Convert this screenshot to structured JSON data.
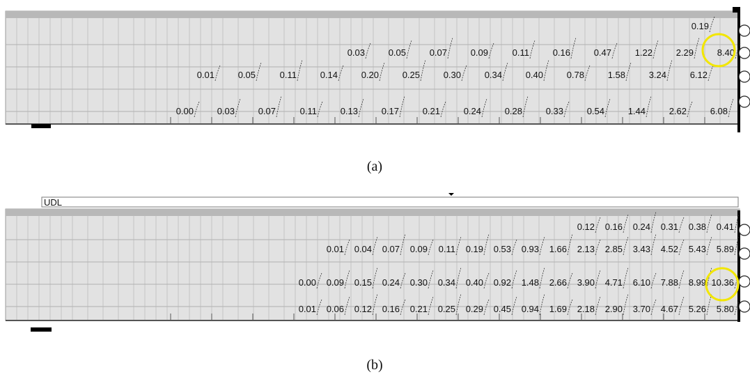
{
  "panels": [
    {
      "caption": "(a)",
      "load_label": "",
      "rows": [
        {
          "values": [
            [
              "0.19",
              13
            ]
          ]
        },
        {
          "values": [
            [
              "0.03",
              0
            ],
            [
              "0.05",
              1
            ],
            [
              "0.07",
              2
            ],
            [
              "0.09",
              3
            ],
            [
              "0.11",
              4
            ],
            [
              "0.16",
              5
            ],
            [
              "0.47",
              6
            ],
            [
              "1.22",
              7
            ],
            [
              "2.29",
              8
            ],
            [
              "8.40",
              9
            ]
          ]
        },
        {
          "values": [
            [
              "0.01",
              0
            ],
            [
              "0.05",
              1
            ],
            [
              "0.11",
              2
            ],
            [
              "0.14",
              3
            ],
            [
              "0.20",
              4
            ],
            [
              "0.25",
              5
            ],
            [
              "0.30",
              6
            ],
            [
              "0.34",
              7
            ],
            [
              "0.40",
              8
            ],
            [
              "0.78",
              9
            ],
            [
              "1.58",
              10
            ],
            [
              "3.24",
              11
            ],
            [
              "6.12",
              12
            ]
          ]
        },
        {
          "values": [
            [
              "0.00",
              0
            ],
            [
              "0.03",
              1
            ],
            [
              "0.07",
              2
            ],
            [
              "0.11",
              3
            ],
            [
              "0.13",
              4
            ],
            [
              "0.17",
              5
            ],
            [
              "0.21",
              6
            ],
            [
              "0.24",
              7
            ],
            [
              "0.28",
              8
            ],
            [
              "0.33",
              9
            ],
            [
              "0.54",
              10
            ],
            [
              "1.44",
              11
            ],
            [
              "2.62",
              12
            ],
            [
              "6.08",
              13
            ]
          ]
        }
      ],
      "highlighted": "8.40",
      "highlight_color": "#f2e600"
    },
    {
      "caption": "(b)",
      "load_label": "UDL",
      "rows": [
        {
          "values": [
            [
              "0.12",
              0
            ],
            [
              "0.16",
              1
            ],
            [
              "0.24",
              2
            ],
            [
              "0.31",
              3
            ],
            [
              "0.38",
              4
            ],
            [
              "0.41",
              5
            ]
          ]
        },
        {
          "values": [
            [
              "0.01",
              0
            ],
            [
              "0.04",
              1
            ],
            [
              "0.07",
              2
            ],
            [
              "0.09",
              3
            ],
            [
              "0.11",
              4
            ],
            [
              "0.19",
              5
            ],
            [
              "0.53",
              6
            ],
            [
              "0.93",
              7
            ],
            [
              "1.66",
              8
            ],
            [
              "2.13",
              9
            ],
            [
              "2.85",
              10
            ],
            [
              "3.43",
              11
            ],
            [
              "4.52",
              12
            ],
            [
              "5.43",
              13
            ],
            [
              "5.89",
              14
            ]
          ]
        },
        {
          "values": [
            [
              "0.00",
              0
            ],
            [
              "0.09",
              1
            ],
            [
              "0.15",
              2
            ],
            [
              "0.24",
              3
            ],
            [
              "0.30",
              4
            ],
            [
              "0.34",
              5
            ],
            [
              "0.40",
              6
            ],
            [
              "0.92",
              7
            ],
            [
              "1.48",
              8
            ],
            [
              "2.66",
              9
            ],
            [
              "3.90",
              10
            ],
            [
              "4.71",
              11
            ],
            [
              "6.10",
              12
            ],
            [
              "7.88",
              13
            ],
            [
              "8.99",
              14
            ],
            [
              "10.36",
              15
            ]
          ]
        },
        {
          "values": [
            [
              "0.01",
              0
            ],
            [
              "0.06",
              1
            ],
            [
              "0.12",
              2
            ],
            [
              "0.16",
              3
            ],
            [
              "0.21",
              4
            ],
            [
              "0.25",
              5
            ],
            [
              "0.29",
              6
            ],
            [
              "0.45",
              7
            ],
            [
              "0.94",
              8
            ],
            [
              "1.69",
              9
            ],
            [
              "2.18",
              10
            ],
            [
              "2.90",
              11
            ],
            [
              "3.70",
              12
            ],
            [
              "4.67",
              13
            ],
            [
              "5.26",
              14
            ],
            [
              "5.80",
              15
            ]
          ]
        }
      ],
      "highlighted": "10.36",
      "highlight_color": "#f2e600"
    }
  ]
}
